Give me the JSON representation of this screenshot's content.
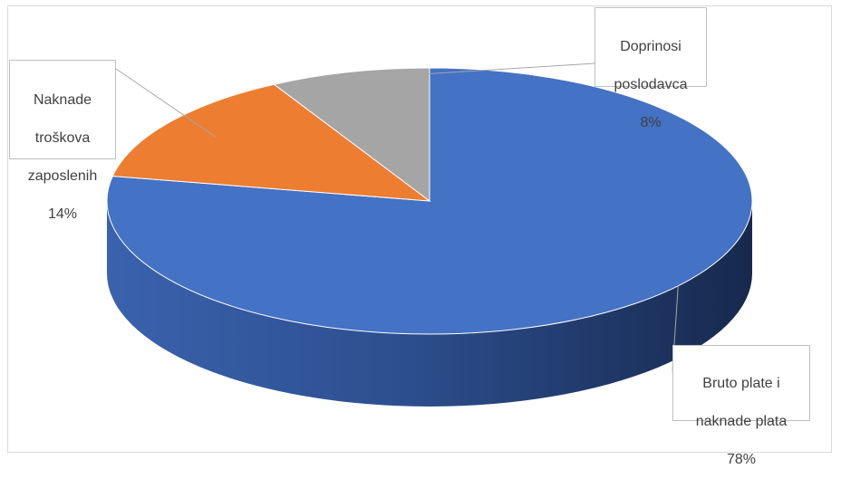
{
  "chart_data": {
    "type": "pie",
    "title": "",
    "style": "3d",
    "slices": [
      {
        "label": "Bruto plate i naknade plata",
        "label_lines": [
          "Bruto plate i",
          "naknade plata"
        ],
        "value": 78,
        "value_label": "78%",
        "color": "#4472c4"
      },
      {
        "label": "Naknade troškova zaposlenih",
        "label_lines": [
          "Naknade",
          "troškova",
          "zaposlenih"
        ],
        "value": 14,
        "value_label": "14%",
        "color": "#ed7d31"
      },
      {
        "label": "Doprinosi poslodavca",
        "label_lines": [
          "Doprinosi",
          "poslodavca"
        ],
        "value": 8,
        "value_label": "8%",
        "color": "#a5a5a5"
      }
    ]
  }
}
